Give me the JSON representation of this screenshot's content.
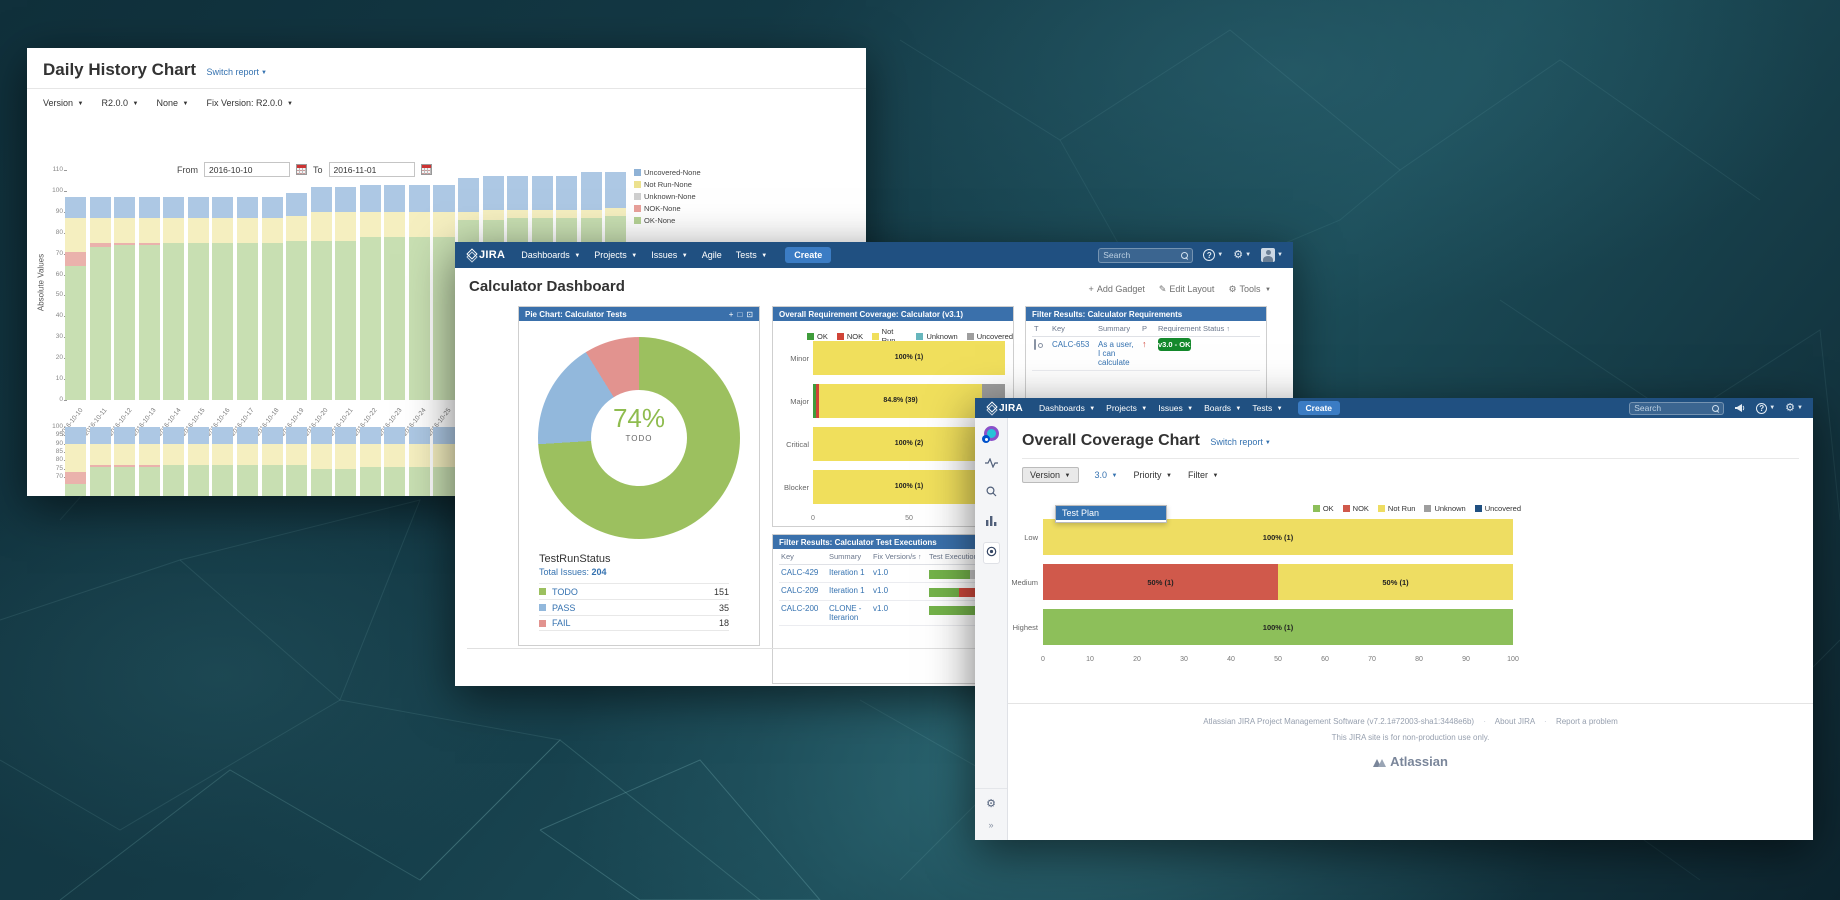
{
  "win1": {
    "title": "Daily History Chart",
    "switch_report": "Switch report",
    "filters": {
      "f1": "Version",
      "f2": "R2.0.0",
      "f3": "None",
      "f4": "Fix Version: R2.0.0"
    },
    "from_label": "From",
    "to_label": "To",
    "from_value": "2016-10-10",
    "to_value": "2016-11-01",
    "ylabel": "Absolute Values"
  },
  "win2": {
    "nav": {
      "logo": "JIRA",
      "items": {
        "0": "Dashboards",
        "1": "Projects",
        "2": "Issues",
        "3": "Agile",
        "4": "Tests"
      },
      "create": "Create",
      "search_placeholder": "Search"
    },
    "page_title": "Calculator Dashboard",
    "actions": {
      "add_gadget": "Add Gadget",
      "edit_layout": "Edit Layout",
      "tools": "Tools"
    },
    "pie_gadget": {
      "title": "Pie Chart: Calculator Tests",
      "stat_type": "TestRunStatus",
      "total_label": "Total Issues:"
    },
    "reqcov_gadget": {
      "title": "Overall Requirement Coverage: Calculator (v3.1)"
    },
    "filterreq_gadget": {
      "title": "Filter Results: Calculator Requirements",
      "columns": {
        "t": "T",
        "key": "Key",
        "summary": "Summary",
        "p": "P",
        "status": "Requirement Status"
      },
      "row": {
        "key": "CALC-653",
        "summary": "As a user, I can calculate",
        "status": "v3.0 - OK"
      }
    },
    "filterexec_gadget": {
      "title": "Filter Results: Calculator Test Executions",
      "columns": {
        "key": "Key",
        "summary": "Summary",
        "fix": "Fix Version/s",
        "exec": "Test Execution"
      },
      "rows": {
        "0": {
          "key": "CALC-429",
          "summary": "Iteration 1",
          "fix": "v1.0",
          "progress": [
            {
              "color": "#74b34a",
              "pct": 57
            },
            {
              "color": "#cccccc",
              "pct": 43
            }
          ]
        },
        "1": {
          "key": "CALC-209",
          "summary": "Iteration 1",
          "fix": "v1.0",
          "progress": [
            {
              "color": "#74b34a",
              "pct": 42
            },
            {
              "color": "#d0493c",
              "pct": 28
            },
            {
              "color": "#cccccc",
              "pct": 30
            }
          ]
        },
        "2": {
          "key": "CALC-200",
          "summary": "CLONE - Iterarion",
          "fix": "v1.0",
          "progress": [
            {
              "color": "#74b34a",
              "pct": 100
            }
          ]
        }
      }
    }
  },
  "win3": {
    "nav": {
      "logo": "JIRA",
      "items": {
        "0": "Dashboards",
        "1": "Projects",
        "2": "Issues",
        "3": "Boards",
        "4": "Tests"
      },
      "create": "Create",
      "search_placeholder": "Search"
    },
    "page_title": "Overall Coverage Chart",
    "switch_report": "Switch report",
    "filters": {
      "version": "Version",
      "version_value": "3.0",
      "priority": "Priority",
      "filter": "Filter"
    },
    "dropdown_item": "Test Plan",
    "footer": {
      "line1": "Atlassian JIRA Project Management Software (v7.2.1#72003-sha1:3448e6b)",
      "about": "About JIRA",
      "report": "Report a problem",
      "line2": "This JIRA site is for non-production use only.",
      "brand": "Atlassian"
    }
  },
  "chart_data": [
    {
      "id": "daily-history-absolute",
      "type": "bar",
      "stacked": true,
      "ylabel": "Absolute Values",
      "ylim": [
        0,
        110
      ],
      "yticks": [
        0,
        10,
        20,
        30,
        40,
        50,
        60,
        70,
        80,
        90,
        100,
        110
      ],
      "grid": false,
      "legend_position": "right",
      "categories": [
        "2016-10-10",
        "2016-10-11",
        "2016-10-12",
        "2016-10-13",
        "2016-10-14",
        "2016-10-15",
        "2016-10-16",
        "2016-10-17",
        "2016-10-18",
        "2016-10-19",
        "2016-10-20",
        "2016-10-21",
        "2016-10-22",
        "2016-10-23",
        "2016-10-24",
        "2016-10-25",
        "2016-10-26",
        "2016-10-27",
        "2016-10-28",
        "2016-10-29",
        "2016-10-30",
        "2016-10-31",
        "2016-11-01"
      ],
      "series": [
        {
          "name": "OK-None",
          "color": "#c8dfb2",
          "values": [
            64,
            73,
            74,
            74,
            75,
            75,
            75,
            75,
            75,
            76,
            76,
            76,
            78,
            78,
            78,
            78,
            86,
            86,
            87,
            87,
            87,
            87,
            88
          ]
        },
        {
          "name": "NOK-None",
          "color": "#eab2ac",
          "values": [
            7,
            2,
            1,
            1,
            0,
            0,
            0,
            0,
            0,
            0,
            0,
            0,
            0,
            0,
            0,
            0,
            0,
            0,
            0,
            0,
            0,
            0,
            0
          ]
        },
        {
          "name": "Not Run-None",
          "color": "#f5efc0",
          "values": [
            16,
            12,
            12,
            12,
            12,
            12,
            12,
            12,
            12,
            12,
            14,
            14,
            12,
            12,
            12,
            12,
            4,
            5,
            4,
            4,
            4,
            4,
            4
          ]
        },
        {
          "name": "Unknown-None",
          "color": "#d8d8d8",
          "values": [
            0,
            0,
            0,
            0,
            0,
            0,
            0,
            0,
            0,
            0,
            0,
            0,
            0,
            0,
            0,
            0,
            0,
            0,
            0,
            0,
            0,
            0,
            0
          ]
        },
        {
          "name": "Uncovered-None",
          "color": "#adc8e4",
          "values": [
            10,
            10,
            10,
            10,
            10,
            10,
            10,
            10,
            10,
            11,
            12,
            12,
            13,
            13,
            13,
            13,
            16,
            16,
            16,
            16,
            16,
            18,
            17
          ]
        }
      ],
      "legend": [
        {
          "label": "Uncovered-None",
          "color": "#8fb2d6"
        },
        {
          "label": "Not Run-None",
          "color": "#ece18e"
        },
        {
          "label": "Unknown-None",
          "color": "#cfcfcf"
        },
        {
          "label": "NOK-None",
          "color": "#e8a09a"
        },
        {
          "label": "OK-None",
          "color": "#b5d295"
        }
      ]
    },
    {
      "id": "daily-history-relative",
      "type": "bar",
      "stacked": true,
      "unit": "percent",
      "ylim": [
        0,
        100
      ],
      "yticks": [
        100,
        95,
        90,
        85,
        80,
        75,
        70
      ],
      "categories": [
        "2016-10-10",
        "2016-10-11",
        "2016-10-12",
        "2016-10-13",
        "2016-10-14",
        "2016-10-15",
        "2016-10-16",
        "2016-10-17",
        "2016-10-18",
        "2016-10-19",
        "2016-10-20",
        "2016-10-21",
        "2016-10-22",
        "2016-10-23",
        "2016-10-24",
        "2016-10-25",
        "2016-10-26",
        "2016-10-27",
        "2016-10-28",
        "2016-10-29",
        "2016-10-30",
        "2016-10-31",
        "2016-11-01"
      ],
      "series": [
        {
          "name": "OK-None",
          "color": "#c8dfb2",
          "values": [
            66,
            76,
            76,
            76,
            77,
            77,
            77,
            77,
            77,
            77,
            75,
            75,
            76,
            76,
            76,
            76,
            81,
            81,
            81,
            81,
            81,
            80,
            80
          ]
        },
        {
          "name": "NOK-None",
          "color": "#eab2ac",
          "values": [
            7,
            1,
            1,
            1,
            0,
            0,
            0,
            0,
            0,
            0,
            0,
            0,
            0,
            0,
            0,
            0,
            0,
            0,
            0,
            0,
            0,
            0,
            0
          ]
        },
        {
          "name": "Not Run-None",
          "color": "#f5efc0",
          "values": [
            17,
            13,
            13,
            13,
            13,
            13,
            13,
            13,
            13,
            13,
            15,
            15,
            14,
            14,
            14,
            14,
            6,
            6,
            6,
            6,
            6,
            7,
            7
          ]
        },
        {
          "name": "Unknown-None",
          "color": "#d8d8d8",
          "values": [
            0,
            0,
            0,
            0,
            0,
            0,
            0,
            0,
            0,
            0,
            0,
            0,
            0,
            0,
            0,
            0,
            0,
            0,
            0,
            0,
            0,
            0,
            0
          ]
        },
        {
          "name": "Uncovered-None",
          "color": "#adc8e4",
          "values": [
            10,
            10,
            10,
            10,
            10,
            10,
            10,
            10,
            10,
            10,
            10,
            10,
            10,
            10,
            10,
            10,
            13,
            13,
            13,
            13,
            13,
            13,
            13
          ]
        }
      ]
    },
    {
      "id": "test-run-status-pie",
      "type": "pie",
      "title": "Pie Chart: Calculator Tests",
      "stat_type": "TestRunStatus",
      "total": 204,
      "slices": [
        {
          "label": "TODO",
          "value": 151,
          "color": "#9cc05f"
        },
        {
          "label": "PASS",
          "value": 35,
          "color": "#92b8dc"
        },
        {
          "label": "FAIL",
          "value": 18,
          "color": "#e2938f"
        }
      ],
      "center": {
        "pct": "74%",
        "label": "TODO"
      }
    },
    {
      "id": "requirement-coverage",
      "type": "bar",
      "orientation": "horizontal",
      "stacked": true,
      "title": "Overall Requirement Coverage: Calculator (v3.1)",
      "xlim": [
        0,
        100
      ],
      "xticks": [
        0,
        50,
        100
      ],
      "colors": {
        "OK": "#3f9c3b",
        "NOK": "#d04437",
        "Not Run": "#f0df5c",
        "Unknown": "#67b6bd",
        "Uncovered": "#9e9e9e"
      },
      "legend": [
        "OK",
        "NOK",
        "Not Run",
        "Unknown",
        "Uncovered"
      ],
      "bars": [
        {
          "category": "Minor",
          "segments": [
            {
              "status": "Not Run",
              "pct": 100,
              "label": "100% (1)"
            }
          ]
        },
        {
          "category": "Major",
          "segments": [
            {
              "status": "OK",
              "pct": 1.5
            },
            {
              "status": "NOK",
              "pct": 1.7
            },
            {
              "status": "Not Run",
              "pct": 84.8,
              "label": "84.8% (39)"
            },
            {
              "status": "Uncovered",
              "pct": 12
            }
          ]
        },
        {
          "category": "Critical",
          "segments": [
            {
              "status": "Not Run",
              "pct": 100,
              "label": "100% (2)"
            }
          ]
        },
        {
          "category": "Blocker",
          "segments": [
            {
              "status": "Not Run",
              "pct": 100,
              "label": "100% (1)"
            }
          ]
        }
      ]
    },
    {
      "id": "overall-coverage",
      "type": "bar",
      "orientation": "horizontal",
      "stacked": true,
      "title": "Overall Coverage Chart",
      "xlim": [
        0,
        100
      ],
      "xticks": [
        0,
        10,
        20,
        30,
        40,
        50,
        60,
        70,
        80,
        90,
        100
      ],
      "colors": {
        "OK": "#8dbf5a",
        "NOK": "#d0594b",
        "Not Run": "#eedd62",
        "Unknown": "#9e9e9e",
        "Uncovered": "#205081"
      },
      "legend": [
        "OK",
        "NOK",
        "Not Run",
        "Unknown",
        "Uncovered"
      ],
      "bars": [
        {
          "category": "Low",
          "segments": [
            {
              "status": "Not Run",
              "pct": 100,
              "label": "100% (1)"
            }
          ]
        },
        {
          "category": "Medium",
          "segments": [
            {
              "status": "NOK",
              "pct": 50,
              "label": "50% (1)"
            },
            {
              "status": "Not Run",
              "pct": 50,
              "label": "50% (1)"
            }
          ]
        },
        {
          "category": "Highest",
          "segments": [
            {
              "status": "OK",
              "pct": 100,
              "label": "100% (1)"
            }
          ]
        }
      ]
    }
  ]
}
